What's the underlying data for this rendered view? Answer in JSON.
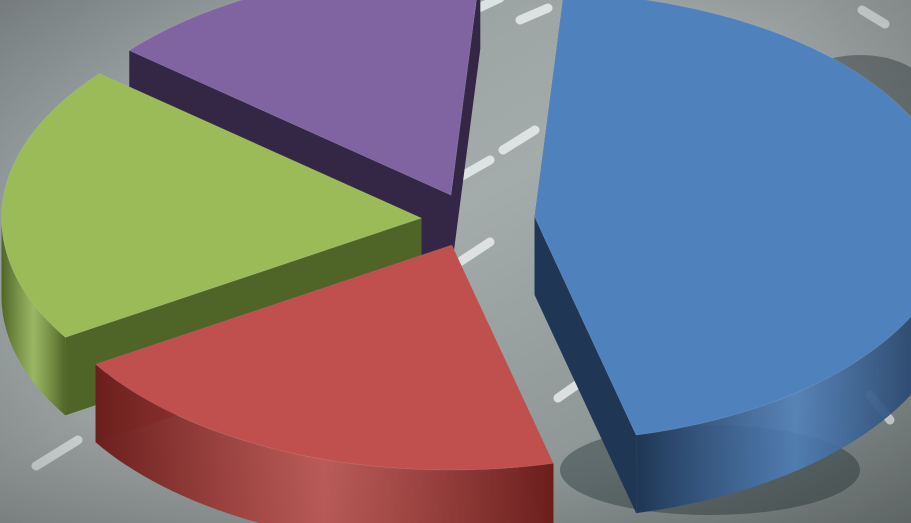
{
  "chart_data": {
    "type": "pie",
    "style": "3d-exploded",
    "title": "",
    "legend": "none",
    "data_labels": "none",
    "series": [
      {
        "values": [
          45,
          20,
          20,
          15
        ],
        "colors": [
          "#4F81BD",
          "#C0504D",
          "#9BBB59",
          "#8064A2"
        ],
        "side_colors": [
          "#1F3654",
          "#6B1F1D",
          "#4F6527",
          "#342645"
        ]
      }
    ]
  },
  "background": {
    "type": "photo",
    "description_free": true,
    "base_color": "#9AA3A3"
  }
}
